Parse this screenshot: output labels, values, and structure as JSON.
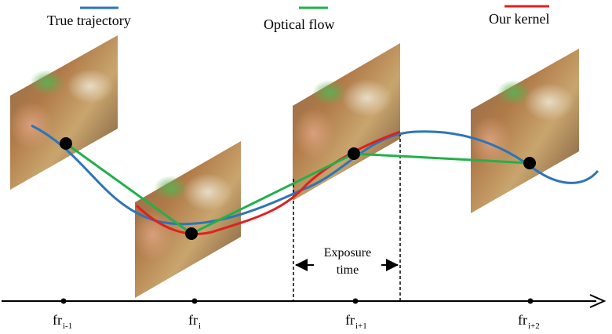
{
  "legend": [
    {
      "label": "True trajectory",
      "color": "#2e75b6"
    },
    {
      "label": "Optical flow",
      "color": "#22b04c"
    },
    {
      "label": "Our kernel",
      "color": "#e02020"
    }
  ],
  "frames": [
    {
      "base": "fr",
      "sub": "i-1"
    },
    {
      "base": "fr",
      "sub": "i"
    },
    {
      "base": "fr",
      "sub": "i+1"
    },
    {
      "base": "fr",
      "sub": "i+2"
    }
  ],
  "exposure": {
    "line1": "Exposure",
    "line2": "time"
  },
  "colors": {
    "axis": "#000000",
    "dot": "#000000"
  }
}
